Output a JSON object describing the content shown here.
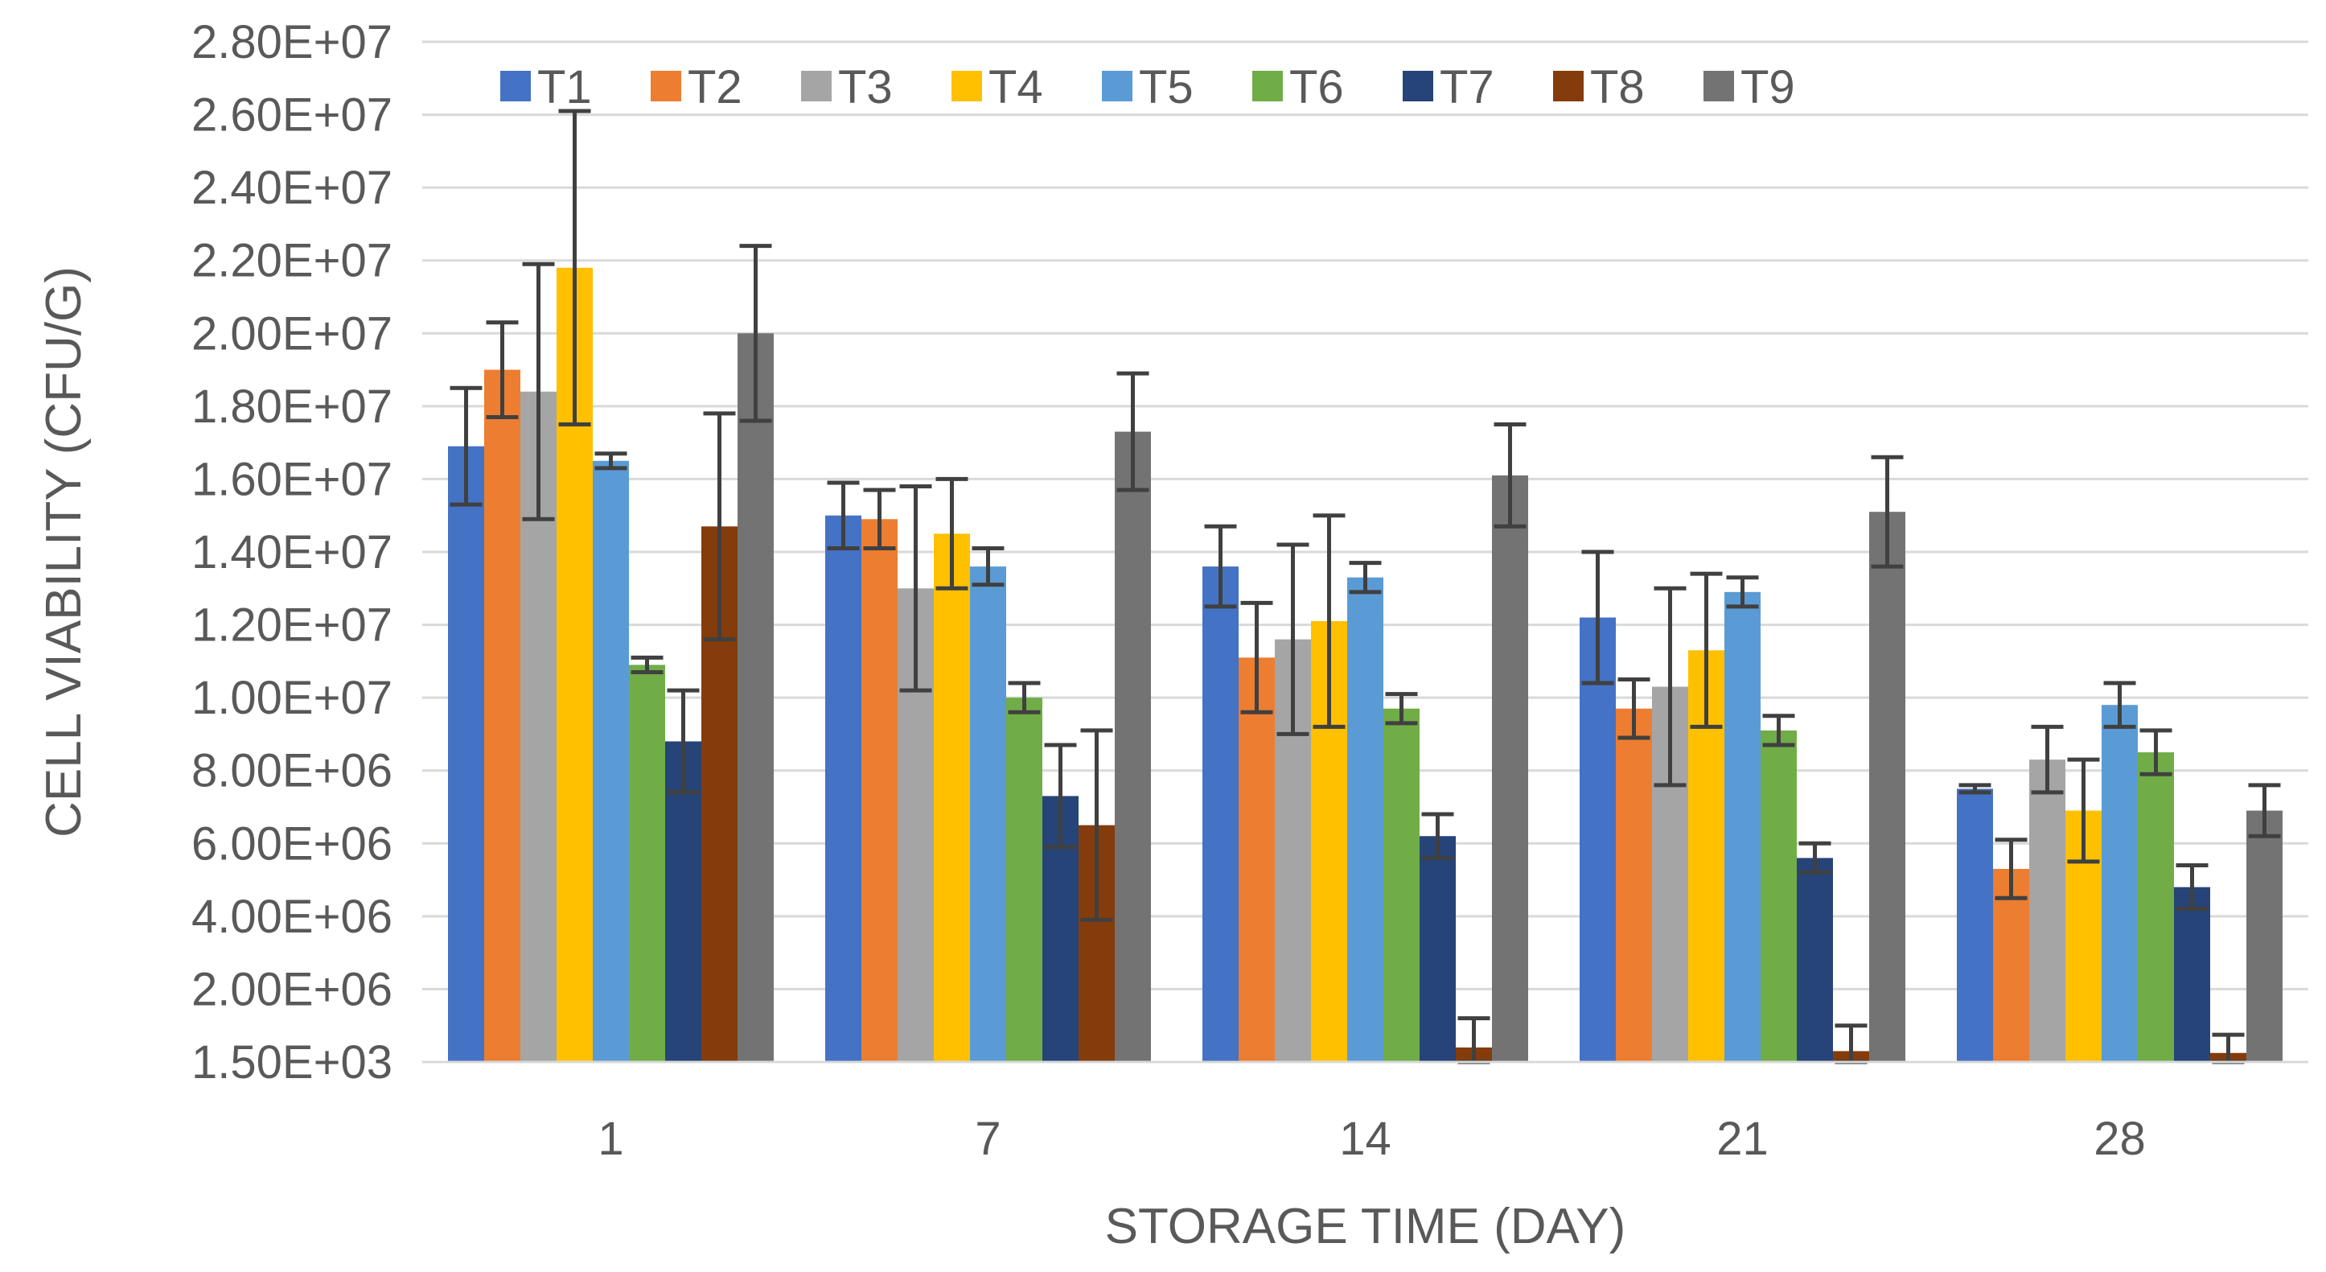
{
  "chart_data": {
    "type": "bar",
    "title": "",
    "xlabel": "STORAGE TIME (DAY)",
    "ylabel": "CELL VIABILITY (CFU/G)",
    "categories": [
      "1",
      "7",
      "14",
      "21",
      "28"
    ],
    "y_ticks": [
      1500,
      2000000,
      4000000,
      6000000,
      8000000,
      10000000,
      12000000,
      14000000,
      16000000,
      18000000,
      20000000,
      22000000,
      24000000,
      26000000,
      28000000
    ],
    "y_tick_labels": [
      "1.50E+03",
      "2.00E+06",
      "4.00E+06",
      "6.00E+06",
      "8.00E+06",
      "1.00E+07",
      "1.20E+07",
      "1.40E+07",
      "1.60E+07",
      "1.80E+07",
      "2.00E+07",
      "2.20E+07",
      "2.40E+07",
      "2.60E+07",
      "2.80E+07"
    ],
    "ylim": [
      1500,
      28000000
    ],
    "grid": true,
    "legend_position": "top",
    "error_bar_color": "#404040",
    "series": [
      {
        "name": "T1",
        "color": "#4472C4",
        "values": [
          16900000,
          15000000,
          13600000,
          12200000,
          7500000
        ],
        "errors": [
          1600000,
          900000,
          1100000,
          1800000,
          100000
        ]
      },
      {
        "name": "T2",
        "color": "#ED7D31",
        "values": [
          19000000,
          14900000,
          11100000,
          9700000,
          5300000
        ],
        "errors": [
          1300000,
          800000,
          1500000,
          800000,
          800000
        ]
      },
      {
        "name": "T3",
        "color": "#A5A5A5",
        "values": [
          18400000,
          13000000,
          11600000,
          10300000,
          8300000
        ],
        "errors": [
          3500000,
          2800000,
          2600000,
          2700000,
          900000
        ]
      },
      {
        "name": "T4",
        "color": "#FFC000",
        "values": [
          21800000,
          14500000,
          12100000,
          11300000,
          6900000
        ],
        "errors": [
          4300000,
          1500000,
          2900000,
          2100000,
          1400000
        ]
      },
      {
        "name": "T5",
        "color": "#5B9BD5",
        "values": [
          16500000,
          13600000,
          13300000,
          12900000,
          9800000
        ],
        "errors": [
          200000,
          500000,
          400000,
          400000,
          600000
        ]
      },
      {
        "name": "T6",
        "color": "#70AD47",
        "values": [
          10900000,
          10000000,
          9700000,
          9100000,
          8500000
        ],
        "errors": [
          200000,
          400000,
          400000,
          400000,
          600000
        ]
      },
      {
        "name": "T7",
        "color": "#264478",
        "values": [
          8800000,
          7300000,
          6200000,
          5600000,
          4800000
        ],
        "errors": [
          1400000,
          1400000,
          600000,
          400000,
          600000
        ]
      },
      {
        "name": "T8",
        "color": "#843C0C",
        "values": [
          14700000,
          6500000,
          400000,
          300000,
          250000
        ],
        "errors": [
          3100000,
          2600000,
          800000,
          700000,
          500000
        ]
      },
      {
        "name": "T9",
        "color": "#737373",
        "values": [
          20000000,
          17300000,
          16100000,
          15100000,
          6900000
        ],
        "errors": [
          2400000,
          1600000,
          1400000,
          1500000,
          700000
        ]
      }
    ]
  }
}
